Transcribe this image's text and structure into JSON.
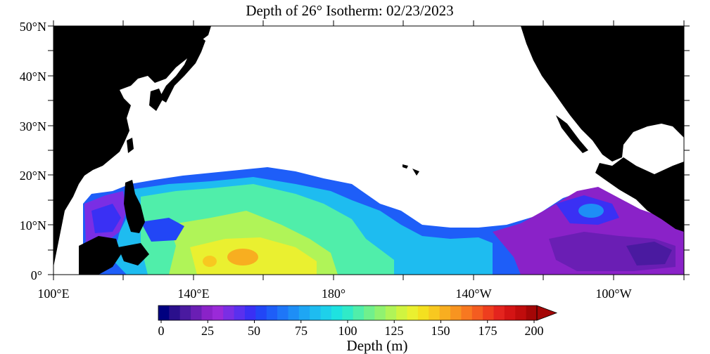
{
  "title": "Depth of 26° Isotherm: 02/23/2023",
  "y_axis": {
    "ticks": [
      "50°N",
      "40°N",
      "30°N",
      "20°N",
      "10°N",
      "0°"
    ]
  },
  "x_axis": {
    "ticks": [
      "100°E",
      "140°E",
      "180°",
      "140°W",
      "100°W"
    ]
  },
  "colorbar": {
    "label": "Depth (m)",
    "ticks": [
      "0",
      "25",
      "50",
      "75",
      "100",
      "125",
      "150",
      "175",
      "200"
    ],
    "colors": [
      "#000080",
      "#2a0f8c",
      "#4a1aa0",
      "#6a1eb4",
      "#8a22c8",
      "#9a2ad8",
      "#7a2ee4",
      "#5a30ee",
      "#3a30f4",
      "#2246f6",
      "#1e5ef8",
      "#1e76f8",
      "#1e8ef6",
      "#1ea6f4",
      "#1ebcf0",
      "#1ed0ea",
      "#1ee2e0",
      "#30eac8",
      "#50eeaa",
      "#70f08c",
      "#90f270",
      "#b0f458",
      "#d0f440",
      "#eaf030",
      "#f4e020",
      "#f8c820",
      "#f8ae20",
      "#f89420",
      "#f87820",
      "#f45c20",
      "#ee3e1e",
      "#e4241e",
      "#d41414",
      "#c00c0c",
      "#a40606"
    ]
  },
  "colors": {
    "land": "#000000",
    "no_data": "#ffffff",
    "shallow": "#7a2ee4",
    "blue": "#2246f6",
    "cyan": "#1ed0ea",
    "green": "#70f08c",
    "yellow": "#eaf030",
    "orange": "#f89420"
  }
}
